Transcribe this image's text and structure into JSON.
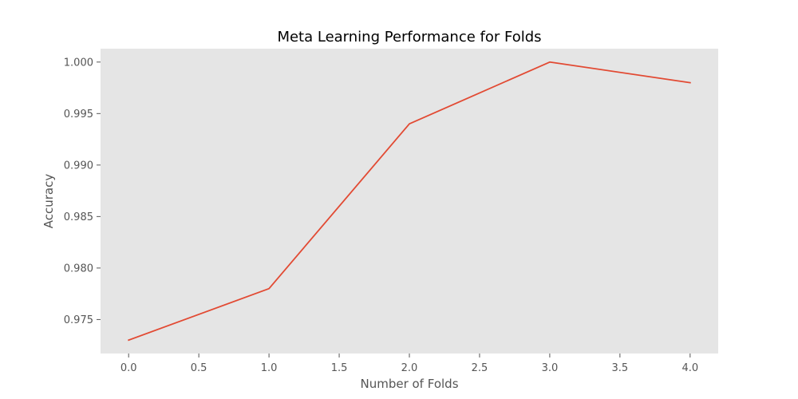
{
  "chart_data": {
    "type": "line",
    "title": "Meta Learning Performance for Folds",
    "xlabel": "Number of Folds",
    "ylabel": "Accuracy",
    "xlim": [
      -0.2,
      4.2
    ],
    "ylim": [
      0.9717,
      1.0013
    ],
    "xticks": [
      0.0,
      0.5,
      1.0,
      1.5,
      2.0,
      2.5,
      3.0,
      3.5,
      4.0
    ],
    "xtick_labels": [
      "0.0",
      "0.5",
      "1.0",
      "1.5",
      "2.0",
      "2.5",
      "3.0",
      "3.5",
      "4.0"
    ],
    "yticks": [
      0.975,
      0.98,
      0.985,
      0.99,
      0.995,
      1.0
    ],
    "ytick_labels": [
      "0.975",
      "0.980",
      "0.985",
      "0.990",
      "0.995",
      "1.000"
    ],
    "grid": false,
    "series": [
      {
        "x": [
          0,
          1,
          2,
          3,
          4
        ],
        "y": [
          0.973,
          0.978,
          0.994,
          1.0,
          0.998
        ],
        "color": "#E24A33"
      }
    ],
    "background": "#E5E5E5"
  }
}
